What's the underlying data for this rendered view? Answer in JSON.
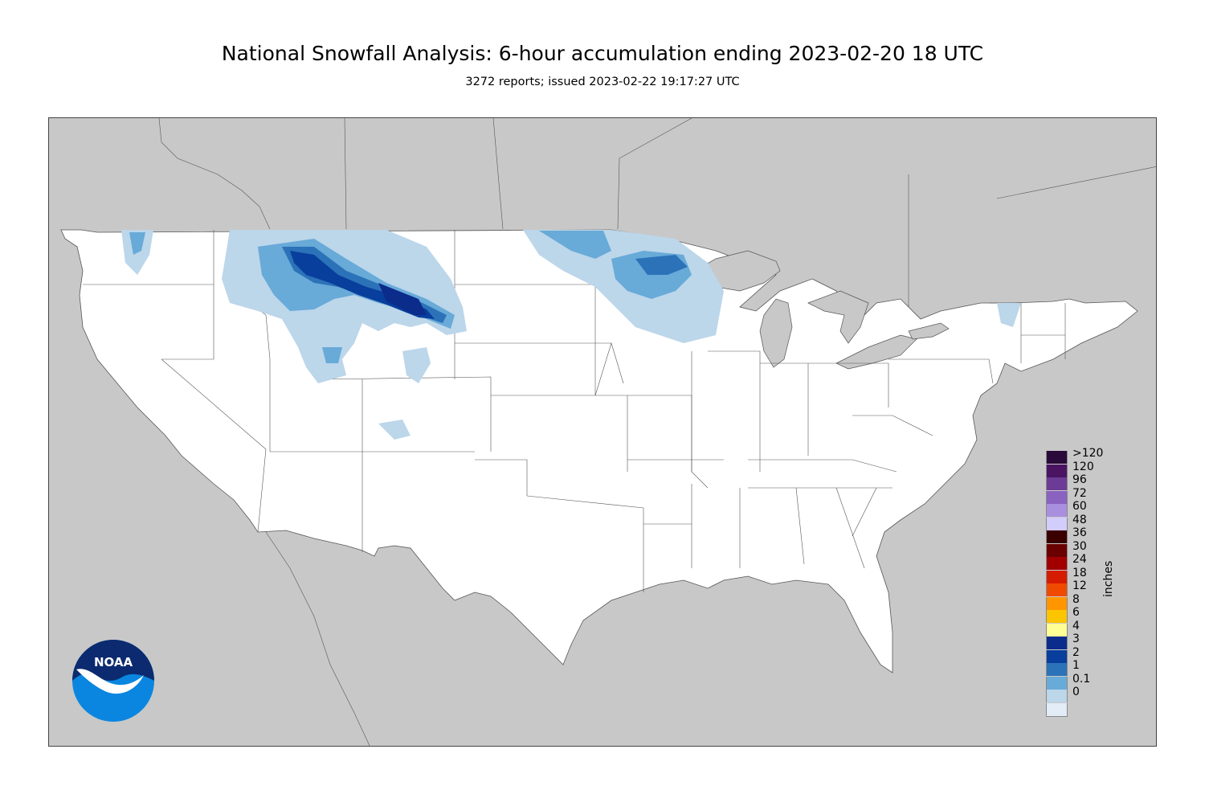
{
  "title": "National Snowfall Analysis: 6-hour accumulation ending 2023-02-20 18 UTC",
  "subtitle": "3272 reports; issued 2023-02-22 19:17:27 UTC",
  "logo": {
    "text": "NOAA",
    "icon": "noaa-logo"
  },
  "legend": {
    "unit": "inches",
    "entries": [
      {
        "label": ">120",
        "color": "#2a0a3a"
      },
      {
        "label": "120",
        "color": "#4b1463"
      },
      {
        "label": "96",
        "color": "#6c3b96"
      },
      {
        "label": "72",
        "color": "#8a62c0"
      },
      {
        "label": "60",
        "color": "#a890de"
      },
      {
        "label": "48",
        "color": "#d2cdfa"
      },
      {
        "label": "36",
        "color": "#3a0000"
      },
      {
        "label": "30",
        "color": "#6a0000"
      },
      {
        "label": "24",
        "color": "#a20000"
      },
      {
        "label": "18",
        "color": "#d61c00"
      },
      {
        "label": "12",
        "color": "#f04a00"
      },
      {
        "label": "8",
        "color": "#ff9600"
      },
      {
        "label": "6",
        "color": "#fdc400"
      },
      {
        "label": "4",
        "color": "#ffff96"
      },
      {
        "label": "3",
        "color": "#0c2c8c"
      },
      {
        "label": "2",
        "color": "#083e9c"
      },
      {
        "label": "1",
        "color": "#2c72b8"
      },
      {
        "label": "0.1",
        "color": "#68aad8"
      },
      {
        "label": "0",
        "color": "#bcd6ea"
      },
      {
        "label": "",
        "color": "#e2ecf6"
      }
    ]
  },
  "colors": {
    "land": "#ffffff",
    "water": "#c8c8c8",
    "border": "#555555"
  }
}
